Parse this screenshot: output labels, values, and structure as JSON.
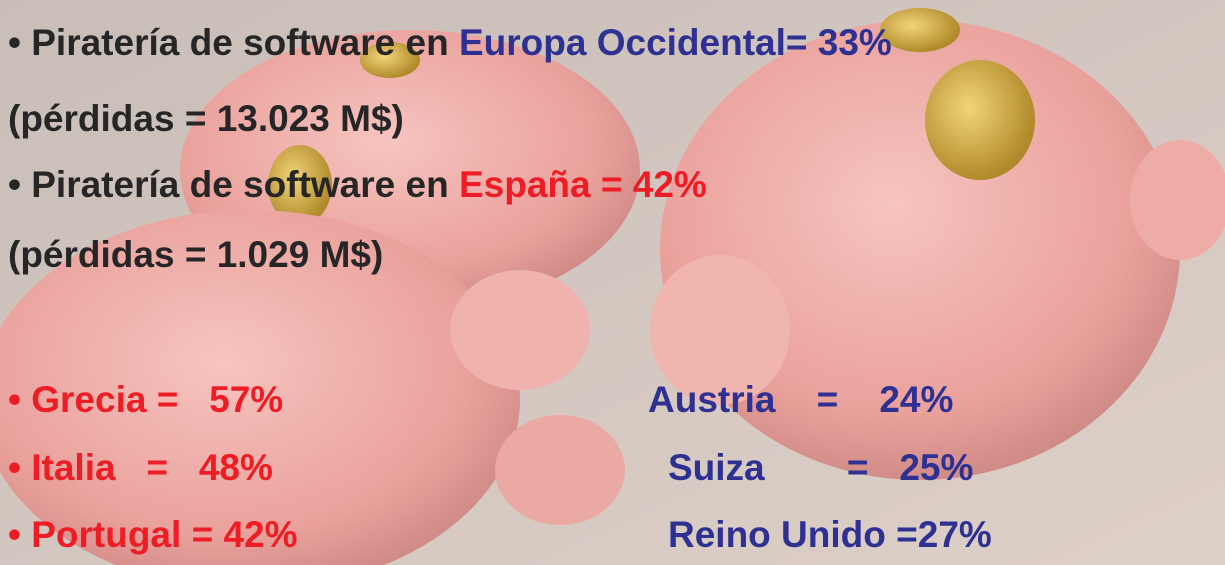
{
  "slide": {
    "lines": [
      {
        "bullet": "• ",
        "text": "Piratería de software en ",
        "highlight": "Europa Occidental= 33%"
      },
      {
        "text": "(pérdidas = 13.023 M$)"
      },
      {
        "bullet": "• ",
        "text": "Piratería de software en ",
        "highlight": "España = 42%"
      },
      {
        "text": "(pérdidas = 1.029 M$)"
      }
    ],
    "left_column": [
      {
        "bullet": "• ",
        "text": "Grecia =   57%"
      },
      {
        "bullet": "• ",
        "text": "Italia   =   48%"
      },
      {
        "bullet": "• ",
        "text": "Portugal = 42%"
      }
    ],
    "right_column": [
      "Austria    =    24%",
      "Suiza        =   25%",
      "Reino Unido =27%"
    ]
  }
}
